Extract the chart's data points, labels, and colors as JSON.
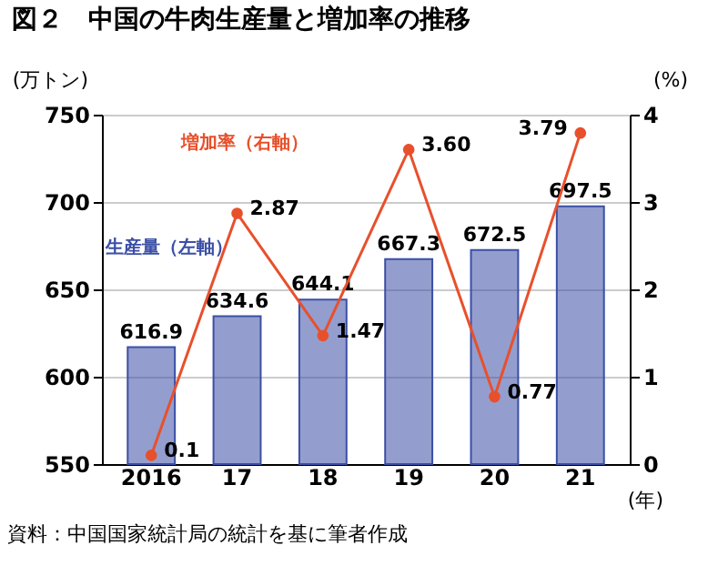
{
  "chart_data": {
    "type": "bar",
    "title": "図２　中国の牛肉生産量と増加率の推移",
    "categories": [
      "2016",
      "17",
      "18",
      "19",
      "20",
      "21"
    ],
    "series": [
      {
        "name": "生産量（左軸）",
        "color": "#3b4fa6",
        "values": [
          616.9,
          634.6,
          644.1,
          667.3,
          672.5,
          697.5
        ]
      },
      {
        "name": "増加率（右軸）",
        "type": "line",
        "axis": "y2",
        "color": "#e8502c",
        "values": [
          0.1,
          2.87,
          1.47,
          3.6,
          0.77,
          3.79
        ],
        "value_labels": [
          "0.1",
          "2.87",
          "1.47",
          "3.60",
          "0.77",
          "3.79"
        ]
      }
    ],
    "ylabel": "(万トン)",
    "y2label": "(%)",
    "xlabel": "(年)",
    "ylim": [
      550,
      750
    ],
    "yticks": [
      550,
      600,
      650,
      700,
      750
    ],
    "y2lim": [
      0,
      4
    ],
    "y2ticks": [
      0,
      1,
      2,
      3,
      4
    ],
    "data_labels": true,
    "grid": "y",
    "marker": "circle",
    "annotations": [
      "資料：中国国家統計局の統計を基に筆者作成"
    ]
  }
}
